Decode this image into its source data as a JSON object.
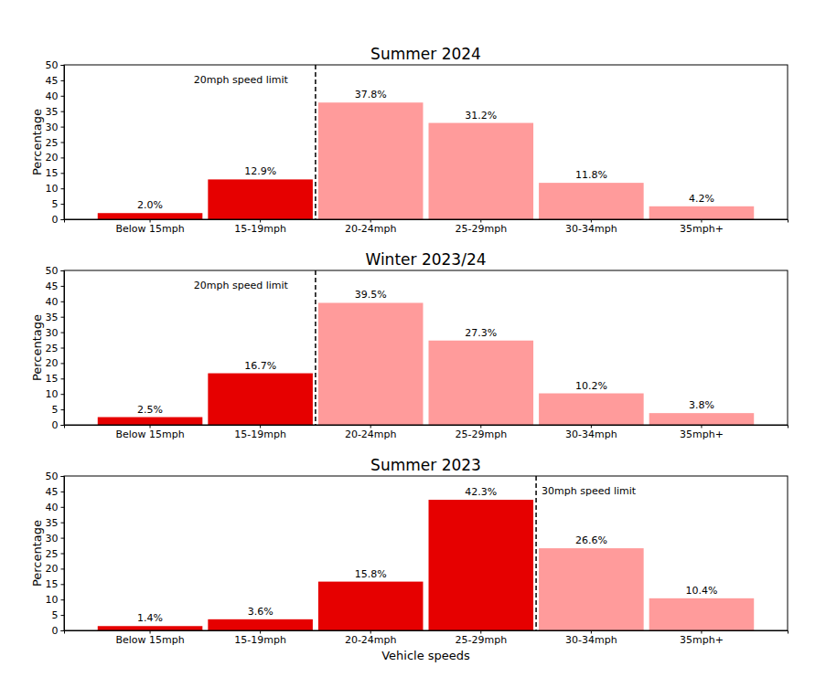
{
  "chart_data": [
    {
      "type": "bar",
      "title": "Summer 2024",
      "categories": [
        "Below 15mph",
        "15-19mph",
        "20-24mph",
        "25-29mph",
        "30-34mph",
        "35mph+"
      ],
      "values": [
        2.0,
        12.9,
        37.8,
        31.2,
        11.8,
        4.2
      ],
      "value_labels": [
        "2.0%",
        "12.9%",
        "37.8%",
        "31.2%",
        "11.8%",
        "4.2%"
      ],
      "colors": [
        "#e60000",
        "#e60000",
        "#ff9b9b",
        "#ff9b9b",
        "#ff9b9b",
        "#ff9b9b"
      ],
      "ylabel": "Percentage",
      "ylim": [
        0,
        50
      ],
      "yticks": [
        0,
        5,
        10,
        15,
        20,
        25,
        30,
        35,
        40,
        45,
        50
      ],
      "annotations": [
        {
          "text": "20mph speed limit",
          "x": 1.5
        }
      ],
      "data_labels": true,
      "grid": false
    },
    {
      "type": "bar",
      "title": "Winter 2023/24",
      "categories": [
        "Below 15mph",
        "15-19mph",
        "20-24mph",
        "25-29mph",
        "30-34mph",
        "35mph+"
      ],
      "values": [
        2.5,
        16.7,
        39.5,
        27.3,
        10.2,
        3.8
      ],
      "value_labels": [
        "2.5%",
        "16.7%",
        "39.5%",
        "27.3%",
        "10.2%",
        "3.8%"
      ],
      "colors": [
        "#e60000",
        "#e60000",
        "#ff9b9b",
        "#ff9b9b",
        "#ff9b9b",
        "#ff9b9b"
      ],
      "ylabel": "Percentage",
      "ylim": [
        0,
        50
      ],
      "yticks": [
        0,
        5,
        10,
        15,
        20,
        25,
        30,
        35,
        40,
        45,
        50
      ],
      "annotations": [
        {
          "text": "20mph speed limit",
          "x": 1.5
        }
      ],
      "data_labels": true,
      "grid": false
    },
    {
      "type": "bar",
      "title": "Summer 2023",
      "categories": [
        "Below 15mph",
        "15-19mph",
        "20-24mph",
        "25-29mph",
        "30-34mph",
        "35mph+"
      ],
      "values": [
        1.4,
        3.6,
        15.8,
        42.3,
        26.6,
        10.4
      ],
      "value_labels": [
        "1.4%",
        "3.6%",
        "15.8%",
        "42.3%",
        "26.6%",
        "10.4%"
      ],
      "colors": [
        "#e60000",
        "#e60000",
        "#e60000",
        "#e60000",
        "#ff9b9b",
        "#ff9b9b"
      ],
      "ylabel": "Percentage",
      "xlabel": "Vehicle speeds",
      "ylim": [
        0,
        50
      ],
      "yticks": [
        0,
        5,
        10,
        15,
        20,
        25,
        30,
        35,
        40,
        45,
        50
      ],
      "annotations": [
        {
          "text": "30mph speed limit",
          "x": 3.5
        }
      ],
      "data_labels": true,
      "grid": false
    }
  ]
}
